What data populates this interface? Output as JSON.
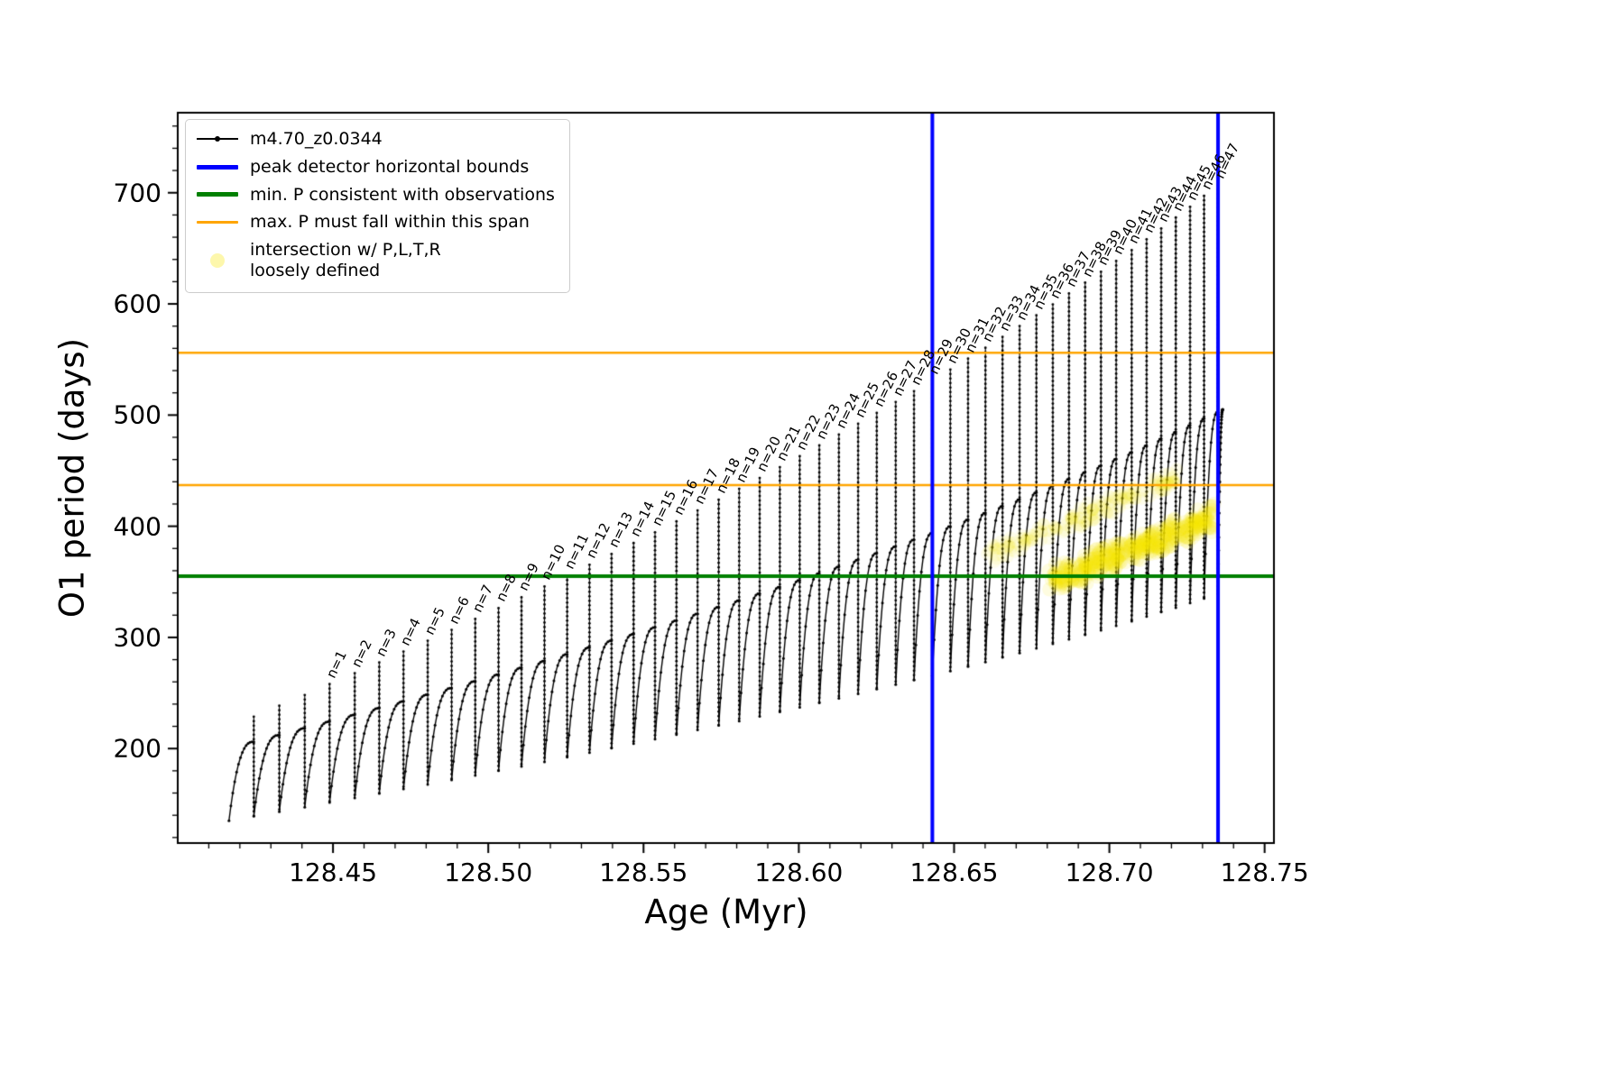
{
  "legend": {
    "entries": [
      {
        "label": "m4.70_z0.0344",
        "type": "line-dot",
        "color": "#000000"
      },
      {
        "label": "peak detector horizontal bounds",
        "type": "line",
        "color": "#0000ff",
        "lw": 5
      },
      {
        "label": "min. P consistent with observations",
        "type": "line",
        "color": "#008000",
        "lw": 5
      },
      {
        "label": "max. P must fall within this span",
        "type": "line",
        "color": "#ffa500",
        "lw": 3
      },
      {
        "label": "intersection w/ P,L,T,R",
        "label2": "loosely defined",
        "type": "dot",
        "color": "#f5e636"
      }
    ]
  },
  "chart_data": {
    "type": "line",
    "title": "",
    "xlabel": "Age (Myr)",
    "ylabel": "O1 period (days)",
    "xlim": [
      128.4,
      128.753
    ],
    "ylim": [
      115,
      772
    ],
    "x_major_ticks": [
      128.45,
      128.5,
      128.55,
      128.6,
      128.65,
      128.7,
      128.75
    ],
    "x_tick_labels": [
      "128.45",
      "128.50",
      "128.55",
      "128.60",
      "128.65",
      "128.70",
      "128.75"
    ],
    "x_minor_step": 0.01,
    "y_major_ticks": [
      200,
      300,
      400,
      500,
      600,
      700
    ],
    "y_tick_labels": [
      "200",
      "300",
      "400",
      "500",
      "600",
      "700"
    ],
    "y_minor_step": 20,
    "annotation_prefix": "n=",
    "annotation_first": 1,
    "annotation_last": 47,
    "series": {
      "name": "m4.70_z0.0344",
      "color": "#000000",
      "marker": "dot",
      "data_start_x": 128.4165,
      "teeth_format": [
        "n",
        "x_peak",
        "trough_at_start",
        "shoulder",
        "peak"
      ],
      "teeth": [
        [
          -2,
          128.4245,
          135.1,
          206.1,
          228.7
        ],
        [
          -1,
          128.4327,
          139.2,
          212.1,
          238.5
        ],
        [
          0,
          128.4409,
          143.2,
          218.2,
          248.2
        ],
        [
          1,
          128.4489,
          147.3,
          224.2,
          258.0
        ],
        [
          2,
          128.457,
          151.4,
          230.3,
          267.8
        ],
        [
          3,
          128.4649,
          155.5,
          236.4,
          277.5
        ],
        [
          4,
          128.4727,
          159.6,
          242.4,
          287.3
        ],
        [
          5,
          128.4805,
          163.6,
          248.5,
          297.0
        ],
        [
          6,
          128.4882,
          167.7,
          254.5,
          306.8
        ],
        [
          7,
          128.4958,
          171.8,
          260.6,
          316.6
        ],
        [
          8,
          128.5033,
          175.9,
          266.7,
          326.3
        ],
        [
          9,
          128.5107,
          180.0,
          272.7,
          336.1
        ],
        [
          10,
          128.5181,
          184.0,
          278.8,
          345.8
        ],
        [
          11,
          128.5254,
          188.1,
          284.8,
          355.6
        ],
        [
          12,
          128.5326,
          192.2,
          290.9,
          365.4
        ],
        [
          13,
          128.5397,
          196.3,
          297.0,
          375.1
        ],
        [
          14,
          128.5468,
          200.4,
          303.0,
          384.9
        ],
        [
          15,
          128.5537,
          204.4,
          309.1,
          394.6
        ],
        [
          16,
          128.5606,
          208.5,
          315.1,
          404.4
        ],
        [
          17,
          128.5674,
          212.6,
          321.2,
          414.2
        ],
        [
          18,
          128.5742,
          216.7,
          327.3,
          423.9
        ],
        [
          19,
          128.5808,
          220.8,
          333.3,
          433.7
        ],
        [
          20,
          128.5874,
          224.8,
          339.4,
          443.4
        ],
        [
          21,
          128.5939,
          228.9,
          345.4,
          453.2
        ],
        [
          22,
          128.6003,
          233.0,
          351.5,
          463.0
        ],
        [
          23,
          128.6066,
          237.1,
          357.6,
          472.7
        ],
        [
          24,
          128.6129,
          241.2,
          363.6,
          482.5
        ],
        [
          25,
          128.6191,
          245.2,
          369.7,
          492.2
        ],
        [
          26,
          128.6251,
          249.3,
          375.7,
          502.0
        ],
        [
          27,
          128.6312,
          253.4,
          381.8,
          511.8
        ],
        [
          28,
          128.6371,
          257.5,
          387.9,
          521.5
        ],
        [
          29,
          128.643,
          261.6,
          393.9,
          531.3
        ],
        [
          30,
          128.6488,
          265.6,
          400.0,
          541.0
        ],
        [
          31,
          128.6545,
          269.7,
          406.0,
          550.8
        ],
        [
          32,
          128.6601,
          273.8,
          412.1,
          560.6
        ],
        [
          33,
          128.6656,
          277.9,
          418.2,
          570.3
        ],
        [
          34,
          128.6711,
          282.0,
          424.2,
          580.1
        ],
        [
          35,
          128.6765,
          286.0,
          430.3,
          589.8
        ],
        [
          36,
          128.6818,
          290.1,
          436.3,
          599.6
        ],
        [
          37,
          128.687,
          294.2,
          442.4,
          609.4
        ],
        [
          38,
          128.6922,
          298.3,
          448.5,
          619.1
        ],
        [
          39,
          128.6973,
          302.4,
          454.5,
          628.9
        ],
        [
          40,
          128.7022,
          306.4,
          460.6,
          638.6
        ],
        [
          41,
          128.7072,
          310.5,
          466.6,
          648.4
        ],
        [
          42,
          128.712,
          314.6,
          472.7,
          658.2
        ],
        [
          43,
          128.7167,
          318.7,
          478.8,
          667.9
        ],
        [
          44,
          128.7214,
          322.8,
          484.8,
          677.7
        ],
        [
          45,
          128.726,
          326.8,
          490.9,
          687.4
        ],
        [
          46,
          128.7305,
          330.9,
          496.9,
          697.2
        ],
        [
          47,
          128.735,
          335.0,
          503.0,
          707.0
        ]
      ],
      "tail": {
        "x_end": 128.7365,
        "y_start": 339.0,
        "y_end": 505.0
      }
    },
    "vlines": [
      {
        "x": 128.643,
        "color": "#0000ff",
        "lw": 4,
        "label": "peak detector horizontal bounds"
      },
      {
        "x": 128.735,
        "color": "#0000ff",
        "lw": 4,
        "label": "peak detector horizontal bounds"
      }
    ],
    "hlines": [
      {
        "y": 355,
        "color": "#008000",
        "lw": 4,
        "label": "min. P consistent with observations"
      },
      {
        "y": 437,
        "color": "#ffa500",
        "lw": 2.5,
        "label": "max. P must fall within this span"
      },
      {
        "y": 556,
        "color": "#ffa500",
        "lw": 2.5,
        "label": "max. P must fall within this span"
      }
    ],
    "scatter_regions": [
      {
        "label": "intersection w/ P,L,T,R loosely defined",
        "color": "243,227,0",
        "alpha": 0.12,
        "x0": 128.682,
        "y0": 352,
        "x1": 128.734,
        "y1": 408,
        "spread": 15,
        "jitter_x": 0.004,
        "count": 380,
        "radius": 8,
        "seed": 7
      },
      {
        "label": "intersection w/ P,L,T,R loosely defined",
        "color": "243,227,0",
        "alpha": 0.08,
        "x0": 128.66,
        "y0": 374,
        "x1": 128.722,
        "y1": 444,
        "spread": 11,
        "jitter_x": 0.003,
        "count": 170,
        "radius": 7,
        "seed": 13
      }
    ]
  }
}
